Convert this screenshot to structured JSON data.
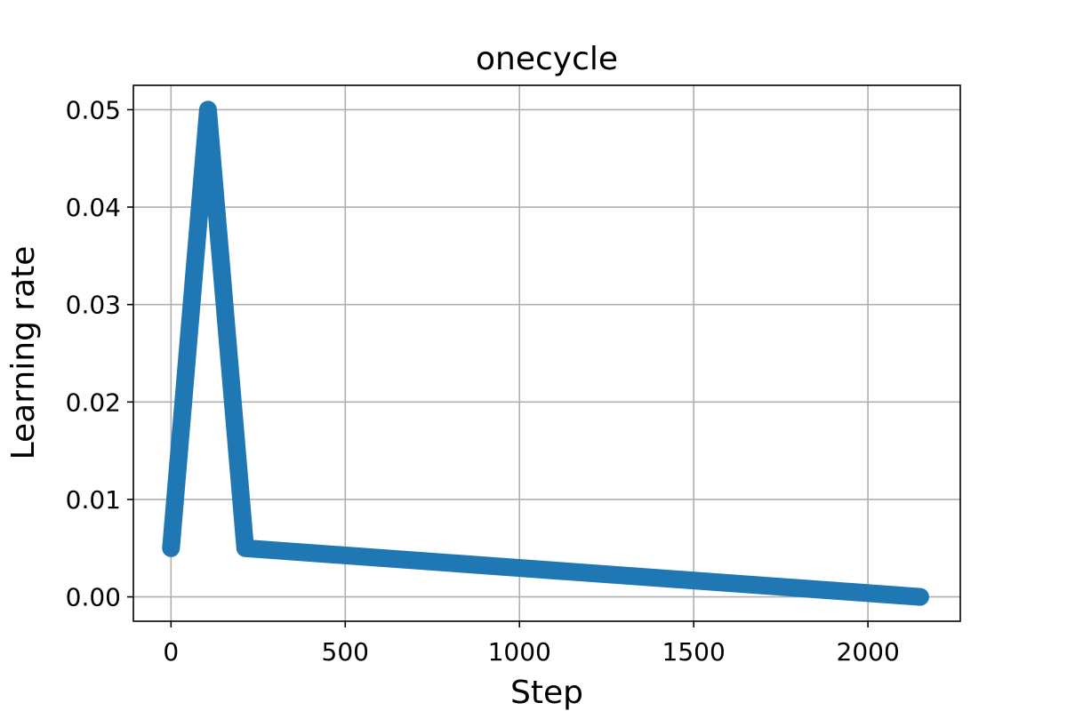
{
  "chart_data": {
    "type": "line",
    "title": "onecycle",
    "xlabel": "Step",
    "ylabel": "Learning rate",
    "xlim": [
      -108,
      2265
    ],
    "ylim": [
      -0.0025,
      0.0525
    ],
    "xticks": [
      0,
      500,
      1000,
      1500,
      2000
    ],
    "xtick_labels": [
      "0",
      "500",
      "1000",
      "1500",
      "2000"
    ],
    "yticks": [
      0.0,
      0.01,
      0.02,
      0.03,
      0.04,
      0.05
    ],
    "ytick_labels": [
      "0.00",
      "0.01",
      "0.02",
      "0.03",
      "0.04",
      "0.05"
    ],
    "grid": true,
    "series": [
      {
        "color": "#1f77b4",
        "x": [
          0,
          106,
          213,
          2150
        ],
        "y": [
          0.005,
          0.05,
          0.005,
          0.0
        ]
      }
    ]
  }
}
